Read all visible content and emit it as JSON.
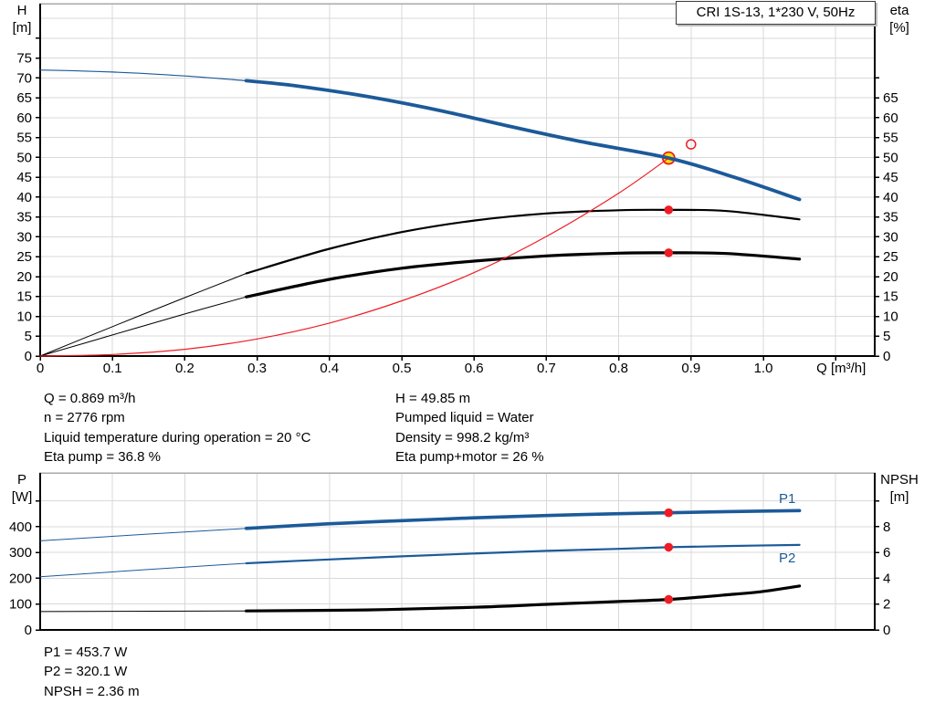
{
  "title_box": {
    "label": "CRI 1S-13, 1*230 V, 50Hz"
  },
  "operating_data_top": {
    "left": [
      "Q = 0.869 m³/h",
      "n = 2776 rpm",
      "Liquid temperature during operation = 20 °C",
      "Eta pump = 36.8 %"
    ],
    "right": [
      "H = 49.85 m",
      "Pumped liquid = Water",
      "Density = 998.2 kg/m³",
      "Eta pump+motor = 26 %"
    ]
  },
  "operating_data_bottom": [
    "P1 = 453.7 W",
    "P2 = 320.1 W",
    "NPSH = 2.36 m"
  ],
  "colors": {
    "curve_blue": "#1c5a99",
    "marker_red": "#ee1c25",
    "marker_yellow": "#ffe100",
    "black": "#000000",
    "grid": "#d9d9d9",
    "border_top": "#a9a9a9"
  },
  "chart_data": [
    {
      "name": "head-flow-chart",
      "type": "line",
      "title": "CRI 1S-13, 1*230 V, 50Hz",
      "xlabel": "Q [m³/h]",
      "xlim": [
        0,
        1.154
      ],
      "x_ticks": {
        "values": [
          0,
          0.1,
          0.2,
          0.3,
          0.4,
          0.5,
          0.6,
          0.7,
          0.8,
          0.9,
          1.0
        ],
        "labels": [
          "0",
          "0.1",
          "0.2",
          "0.3",
          "0.4",
          "0.5",
          "0.6",
          "0.7",
          "0.8",
          "0.9",
          "1.0"
        ],
        "extra": [
          1.1
        ]
      },
      "left_axis": {
        "label": [
          "H",
          "[m]"
        ],
        "lim": [
          0,
          88.7
        ],
        "ticks": {
          "values": [
            0,
            5,
            10,
            15,
            20,
            25,
            30,
            35,
            40,
            45,
            50,
            55,
            60,
            65,
            70,
            75
          ],
          "labels": [
            "0",
            "5",
            "10",
            "15",
            "20",
            "25",
            "30",
            "35",
            "40",
            "45",
            "50",
            "55",
            "60",
            "65",
            "70",
            "75"
          ],
          "extra": [
            80
          ]
        }
      },
      "right_axis": {
        "label": [
          "eta",
          "[%]"
        ],
        "lim": [
          0,
          88.7
        ],
        "ticks": {
          "values": [
            0,
            5,
            10,
            15,
            20,
            25,
            30,
            35,
            40,
            45,
            50,
            55,
            60,
            65
          ],
          "labels": [
            "0",
            "5",
            "10",
            "15",
            "20",
            "25",
            "30",
            "35",
            "40",
            "45",
            "50",
            "55",
            "60",
            "65"
          ],
          "extra": [
            70
          ]
        }
      },
      "grid": {
        "x": [
          0.1,
          1.1,
          0.1
        ],
        "y": [
          5,
          85,
          5
        ]
      },
      "series": [
        {
          "name": "head-curve-lead-in",
          "axis": "left",
          "color": "blue",
          "width": 1.2,
          "points": [
            [
              0,
              72
            ],
            [
              0.1,
              71.5
            ],
            [
              0.2,
              70.5
            ],
            [
              0.285,
              69.3
            ]
          ]
        },
        {
          "name": "head-curve",
          "axis": "left",
          "color": "blue",
          "width": 3.8,
          "points": [
            [
              0.285,
              69.3
            ],
            [
              0.35,
              68.1
            ],
            [
              0.45,
              65.4
            ],
            [
              0.55,
              61.9
            ],
            [
              0.65,
              57.8
            ],
            [
              0.75,
              53.9
            ],
            [
              0.869,
              49.85
            ],
            [
              0.96,
              45.0
            ],
            [
              1.05,
              39.4
            ]
          ]
        },
        {
          "name": "eta-pump-curve-lead-in",
          "axis": "right",
          "color": "black",
          "width": 1,
          "points": [
            [
              0,
              0
            ],
            [
              0.1,
              7.4
            ],
            [
              0.2,
              14.7
            ],
            [
              0.285,
              20.8
            ]
          ]
        },
        {
          "name": "eta-pump-curve",
          "axis": "right",
          "color": "black",
          "width": 2.2,
          "points": [
            [
              0.285,
              20.8
            ],
            [
              0.4,
              27.0
            ],
            [
              0.5,
              31.2
            ],
            [
              0.6,
              34.1
            ],
            [
              0.7,
              35.9
            ],
            [
              0.8,
              36.7
            ],
            [
              0.869,
              36.8
            ],
            [
              0.95,
              36.5
            ],
            [
              1.05,
              34.4
            ]
          ]
        },
        {
          "name": "eta-pump-motor-curve-lead-in",
          "axis": "right",
          "color": "black",
          "width": 1,
          "points": [
            [
              0,
              0
            ],
            [
              0.1,
              5.3
            ],
            [
              0.2,
              10.6
            ],
            [
              0.285,
              14.9
            ]
          ]
        },
        {
          "name": "eta-pump-motor-curve",
          "axis": "right",
          "color": "black",
          "width": 3.2,
          "points": [
            [
              0.285,
              14.9
            ],
            [
              0.4,
              19.3
            ],
            [
              0.5,
              22.1
            ],
            [
              0.6,
              23.9
            ],
            [
              0.7,
              25.2
            ],
            [
              0.8,
              25.9
            ],
            [
              0.869,
              26.0
            ],
            [
              0.95,
              25.8
            ],
            [
              1.05,
              24.4
            ]
          ]
        },
        {
          "name": "system-curve",
          "axis": "left",
          "color": "red",
          "width": 1.2,
          "points": [
            [
              0,
              0
            ],
            [
              0.1,
              0.4
            ],
            [
              0.2,
              1.7
            ],
            [
              0.3,
              4.3
            ],
            [
              0.4,
              8.3
            ],
            [
              0.5,
              13.9
            ],
            [
              0.6,
              21.0
            ],
            [
              0.7,
              30.1
            ],
            [
              0.8,
              41.0
            ],
            [
              0.869,
              49.85
            ]
          ]
        }
      ],
      "markers": [
        {
          "name": "duty-point",
          "style": "yellow-dot",
          "axis": "left",
          "x": 0.869,
          "y": 49.85,
          "z": "below"
        },
        {
          "name": "requested-duty-point",
          "style": "open-circle",
          "axis": "left",
          "x": 0.9,
          "y": 53.3,
          "z": "above"
        },
        {
          "name": "eta-pump-point",
          "style": "red-dot",
          "axis": "right",
          "x": 0.869,
          "y": 36.8,
          "z": "above"
        },
        {
          "name": "eta-pump-motor-point",
          "style": "red-dot",
          "axis": "right",
          "x": 0.869,
          "y": 26.0,
          "z": "above"
        }
      ],
      "curve_labels": []
    },
    {
      "name": "power-npsh-chart",
      "type": "line",
      "title": "",
      "xlabel": null,
      "xlim": [
        0,
        1.154
      ],
      "x_ticks": null,
      "left_axis": {
        "label": [
          "P",
          "[W]"
        ],
        "lim": [
          0,
          608
        ],
        "ticks": {
          "values": [
            0,
            100,
            200,
            300,
            400
          ],
          "labels": [
            "0",
            "100",
            "200",
            "300",
            "400"
          ],
          "extra": [
            500
          ]
        }
      },
      "right_axis": {
        "label": [
          "NPSH",
          "[m]"
        ],
        "lim": [
          0,
          12.16
        ],
        "ticks": {
          "values": [
            0,
            2,
            4,
            6,
            8
          ],
          "labels": [
            "0",
            "2",
            "4",
            "6",
            "8"
          ],
          "extra": [
            10
          ]
        }
      },
      "grid": {
        "x": [
          0.1,
          1.1,
          0.1
        ],
        "y": [
          100,
          500,
          100
        ]
      },
      "series": [
        {
          "name": "p1-curve-lead-in",
          "axis": "left",
          "color": "blue",
          "width": 1,
          "points": [
            [
              0,
              345
            ],
            [
              0.15,
              371
            ],
            [
              0.285,
              393
            ]
          ]
        },
        {
          "name": "p1-curve",
          "axis": "left",
          "color": "blue",
          "width": 3.6,
          "points": [
            [
              0.285,
              393
            ],
            [
              0.4,
              411
            ],
            [
              0.5,
              423
            ],
            [
              0.6,
              434
            ],
            [
              0.7,
              443
            ],
            [
              0.8,
              450
            ],
            [
              0.869,
              453.7
            ],
            [
              0.95,
              458
            ],
            [
              1.05,
              462
            ]
          ]
        },
        {
          "name": "p2-curve-lead-in",
          "axis": "left",
          "color": "blue",
          "width": 1,
          "points": [
            [
              0,
              206
            ],
            [
              0.15,
              234
            ],
            [
              0.285,
              258
            ]
          ]
        },
        {
          "name": "p2-curve",
          "axis": "left",
          "color": "blue",
          "width": 2.2,
          "points": [
            [
              0.285,
              258
            ],
            [
              0.4,
              273
            ],
            [
              0.5,
              285
            ],
            [
              0.6,
              296
            ],
            [
              0.7,
              306
            ],
            [
              0.8,
              314
            ],
            [
              0.869,
              320.1
            ],
            [
              0.95,
              325
            ],
            [
              1.05,
              329
            ]
          ]
        },
        {
          "name": "npsh-curve-lead-in",
          "axis": "right",
          "color": "black",
          "width": 1,
          "points": [
            [
              0,
              1.42
            ],
            [
              0.285,
              1.47
            ]
          ]
        },
        {
          "name": "npsh-curve",
          "axis": "right",
          "color": "black",
          "width": 3.2,
          "points": [
            [
              0.285,
              1.47
            ],
            [
              0.45,
              1.55
            ],
            [
              0.6,
              1.75
            ],
            [
              0.7,
              1.98
            ],
            [
              0.8,
              2.2
            ],
            [
              0.869,
              2.36
            ],
            [
              0.95,
              2.72
            ],
            [
              1.0,
              2.98
            ],
            [
              1.05,
              3.4
            ]
          ]
        }
      ],
      "markers": [
        {
          "name": "p1-point",
          "style": "red-dot",
          "axis": "left",
          "x": 0.869,
          "y": 453.7,
          "z": "above"
        },
        {
          "name": "p2-point",
          "style": "red-dot",
          "axis": "left",
          "x": 0.869,
          "y": 320.1,
          "z": "above"
        },
        {
          "name": "npsh-point",
          "style": "red-dot",
          "axis": "right",
          "x": 0.869,
          "y": 2.36,
          "z": "above"
        }
      ],
      "curve_labels": [
        {
          "text": "P1",
          "axis": "left",
          "x": 1.033,
          "y": 491
        },
        {
          "text": "P2",
          "axis": "left",
          "x": 1.033,
          "y": 262
        }
      ]
    }
  ]
}
